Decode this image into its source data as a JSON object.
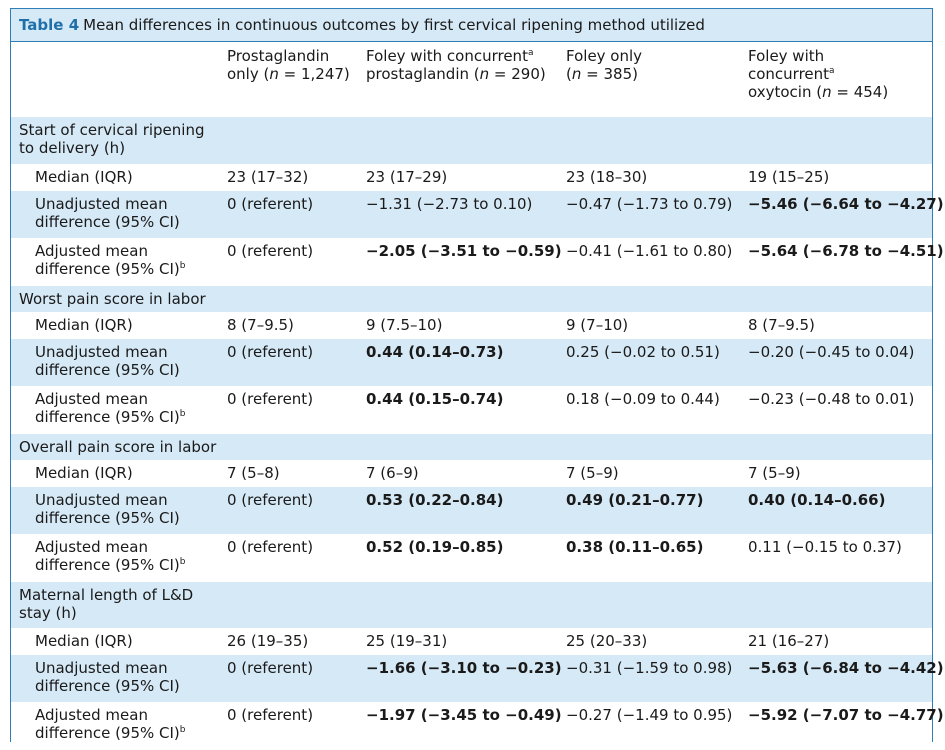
{
  "caption": {
    "label": "Table 4",
    "text": "Mean differences in continuous outcomes by first cervical ripening method utilized"
  },
  "columns": [
    {
      "l1": "Prostaglandin",
      "l2": "only (",
      "n": "n",
      "eq": " = 1,247)",
      "l3": ""
    },
    {
      "l1": "Foley with concurrent",
      "sup": "a",
      "l2": "prostaglandin (",
      "n": "n",
      "eq": " = 290)",
      "l3": ""
    },
    {
      "l1": "Foley only",
      "l2": "(",
      "n": "n",
      "eq": " = 385)",
      "l3": ""
    },
    {
      "l1": "Foley with",
      "l2": "concurrent",
      "sup2": "a",
      "l3": "oxytocin (",
      "n": "n",
      "eq": " = 454)"
    }
  ],
  "sections": [
    {
      "title_l1": "Start of cervical ripening",
      "title_l2": "to delivery (h)",
      "median": {
        "label": "Median (IQR)",
        "values": [
          "23 (17–32)",
          "23 (17–29)",
          "23 (18–30)",
          "19 (15–25)"
        ]
      },
      "unadjusted": {
        "label_l1": "Unadjusted mean",
        "label_l2": "difference (95% CI)",
        "values": [
          "0 (referent)",
          "−1.31 (−2.73 to 0.10)",
          "−0.47 (−1.73 to 0.79)",
          "−5.46 (−6.64 to −4.27)"
        ],
        "bold": [
          false,
          false,
          false,
          true
        ]
      },
      "adjusted": {
        "label_l1": "Adjusted mean",
        "label_l2": "difference (95% CI)",
        "sup": "b",
        "values": [
          "0 (referent)",
          "−2.05 (−3.51 to −0.59)",
          "−0.41 (−1.61 to 0.80)",
          "−5.64 (−6.78 to −4.51)"
        ],
        "bold": [
          false,
          true,
          false,
          true
        ]
      }
    },
    {
      "title_l1": "Worst pain score in labor",
      "title_l2": "",
      "median": {
        "label": "Median (IQR)",
        "values": [
          "8 (7–9.5)",
          "9 (7.5–10)",
          "9 (7–10)",
          "8 (7–9.5)"
        ]
      },
      "unadjusted": {
        "label_l1": "Unadjusted mean",
        "label_l2": "difference (95% CI)",
        "values": [
          "0 (referent)",
          "0.44 (0.14–0.73)",
          "0.25 (−0.02 to 0.51)",
          "−0.20 (−0.45 to 0.04)"
        ],
        "bold": [
          false,
          true,
          false,
          false
        ]
      },
      "adjusted": {
        "label_l1": "Adjusted mean",
        "label_l2": "difference (95% CI)",
        "sup": "b",
        "values": [
          "0 (referent)",
          "0.44 (0.15–0.74)",
          "0.18 (−0.09 to 0.44)",
          "−0.23 (−0.48 to 0.01)"
        ],
        "bold": [
          false,
          true,
          false,
          false
        ]
      }
    },
    {
      "title_l1": "Overall pain score in labor",
      "title_l2": "",
      "median": {
        "label": "Median (IQR)",
        "values": [
          "7 (5–8)",
          "7 (6–9)",
          "7 (5–9)",
          "7 (5–9)"
        ]
      },
      "unadjusted": {
        "label_l1": "Unadjusted mean",
        "label_l2": "difference (95% CI)",
        "values": [
          "0 (referent)",
          "0.53 (0.22–0.84)",
          "0.49 (0.21–0.77)",
          "0.40 (0.14–0.66)"
        ],
        "bold": [
          false,
          true,
          true,
          true
        ]
      },
      "adjusted": {
        "label_l1": "Adjusted mean",
        "label_l2": "difference (95% CI)",
        "sup": "b",
        "values": [
          "0 (referent)",
          "0.52 (0.19–0.85)",
          "0.38 (0.11–0.65)",
          "0.11 (−0.15 to 0.37)"
        ],
        "bold": [
          false,
          true,
          true,
          false
        ]
      }
    },
    {
      "title_l1": "Maternal length of L&D",
      "title_l2": "stay (h)",
      "median": {
        "label": "Median (IQR)",
        "values": [
          "26 (19–35)",
          "25 (19–31)",
          "25 (20–33)",
          "21 (16–27)"
        ]
      },
      "unadjusted": {
        "label_l1": "Unadjusted mean",
        "label_l2": "difference (95% CI)",
        "values": [
          "0 (referent)",
          "−1.66 (−3.10 to −0.23)",
          "−0.31 (−1.59 to 0.98)",
          "−5.63 (−6.84 to −4.42)"
        ],
        "bold": [
          false,
          true,
          false,
          true
        ]
      },
      "adjusted": {
        "label_l1": "Adjusted mean",
        "label_l2": "difference (95% CI)",
        "sup": "b",
        "values": [
          "0 (referent)",
          "−1.97 (−3.45 to −0.49)",
          "−0.27 (−1.49 to 0.95)",
          "−5.92 (−7.07 to −4.77)"
        ],
        "bold": [
          false,
          true,
          false,
          true
        ]
      }
    }
  ],
  "colors": {
    "accent": "#2f7fb6",
    "band": "#d6e9f6",
    "caption_label": "#1f6fa8"
  }
}
